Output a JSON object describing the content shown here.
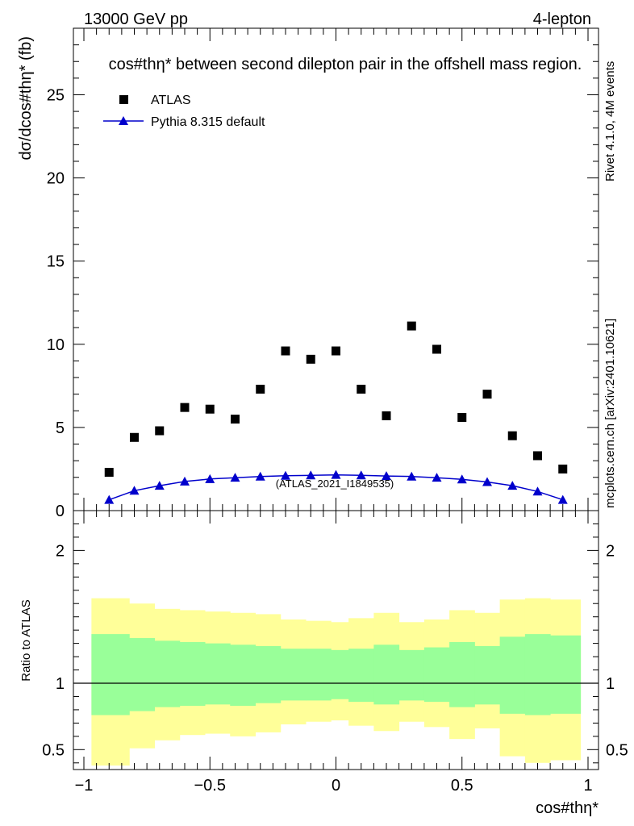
{
  "header": {
    "left": "13000 GeV pp",
    "right": "4-lepton",
    "title": "cos#thη* between second dilepton pair in the offshell mass region."
  },
  "side_labels": {
    "rivet": "Rivet 4.1.0,  4M events",
    "mcplots": "mcplots.cern.ch [arXiv:2401.10621]"
  },
  "watermark": "(ATLAS_2021_I1849535)",
  "colors": {
    "atlas": "#000000",
    "pythia": "#0000cc",
    "band_inner": "#99ff99",
    "band_outer": "#ffff99"
  },
  "chart_data": [
    {
      "type": "scatter",
      "title": "cos#thη* between second dilepton pair in the offshell mass region.",
      "xlabel": "cos#thη*",
      "ylabel": "dσ/dcos#thη* (fb)",
      "xlim": [
        -1,
        1
      ],
      "ylim": [
        0,
        29
      ],
      "yticks": [
        0,
        5,
        10,
        15,
        20,
        25
      ],
      "legend_position": "top-left",
      "x": [
        -0.9,
        -0.8,
        -0.7,
        -0.6,
        -0.5,
        -0.4,
        -0.3,
        -0.2,
        -0.1,
        0.0,
        0.1,
        0.2,
        0.3,
        0.4,
        0.5,
        0.6,
        0.7,
        0.8,
        0.9
      ],
      "series": [
        {
          "name": "ATLAS",
          "marker": "square",
          "values": [
            2.3,
            4.4,
            4.8,
            6.2,
            6.1,
            5.5,
            7.3,
            9.6,
            9.1,
            9.6,
            7.3,
            5.7,
            11.1,
            9.7,
            5.6,
            7.0,
            4.5,
            3.3,
            2.5
          ]
        },
        {
          "name": "Pythia 8.315 default",
          "marker": "triangle",
          "values": [
            0.65,
            1.2,
            1.5,
            1.75,
            1.9,
            1.98,
            2.05,
            2.1,
            2.12,
            2.15,
            2.12,
            2.08,
            2.05,
            1.98,
            1.88,
            1.72,
            1.5,
            1.15,
            0.65
          ]
        }
      ]
    },
    {
      "type": "area",
      "title": "",
      "xlabel": "cos#thη*",
      "ylabel": "Ratio to ATLAS",
      "xlim": [
        -1,
        1
      ],
      "ylim": [
        0.35,
        2.3
      ],
      "yticks": [
        0.5,
        1,
        2
      ],
      "xticks": [
        -1,
        -0.5,
        0,
        0.5,
        1
      ],
      "xtick_labels": [
        "−1",
        "−0.5",
        "0",
        "0.5",
        "1"
      ],
      "reference_line": 1,
      "bin_edges": [
        -0.97,
        -0.82,
        -0.72,
        -0.62,
        -0.52,
        -0.42,
        -0.32,
        -0.22,
        -0.12,
        -0.02,
        0.05,
        0.15,
        0.25,
        0.35,
        0.45,
        0.55,
        0.65,
        0.75,
        0.85,
        0.97
      ],
      "bands": [
        {
          "name": "outer uncertainty",
          "lower": [
            0.38,
            0.51,
            0.57,
            0.61,
            0.62,
            0.6,
            0.63,
            0.69,
            0.71,
            0.72,
            0.68,
            0.64,
            0.71,
            0.67,
            0.58,
            0.66,
            0.45,
            0.4,
            0.42
          ],
          "upper": [
            1.64,
            1.6,
            1.56,
            1.55,
            1.54,
            1.53,
            1.52,
            1.48,
            1.47,
            1.46,
            1.49,
            1.53,
            1.46,
            1.48,
            1.55,
            1.53,
            1.63,
            1.64,
            1.63
          ]
        },
        {
          "name": "inner uncertainty",
          "lower": [
            0.76,
            0.79,
            0.82,
            0.83,
            0.84,
            0.83,
            0.85,
            0.87,
            0.87,
            0.88,
            0.86,
            0.84,
            0.87,
            0.86,
            0.82,
            0.84,
            0.77,
            0.76,
            0.77
          ],
          "upper": [
            1.37,
            1.34,
            1.32,
            1.31,
            1.3,
            1.29,
            1.28,
            1.26,
            1.26,
            1.25,
            1.26,
            1.29,
            1.25,
            1.27,
            1.31,
            1.28,
            1.35,
            1.37,
            1.36
          ]
        }
      ]
    }
  ]
}
